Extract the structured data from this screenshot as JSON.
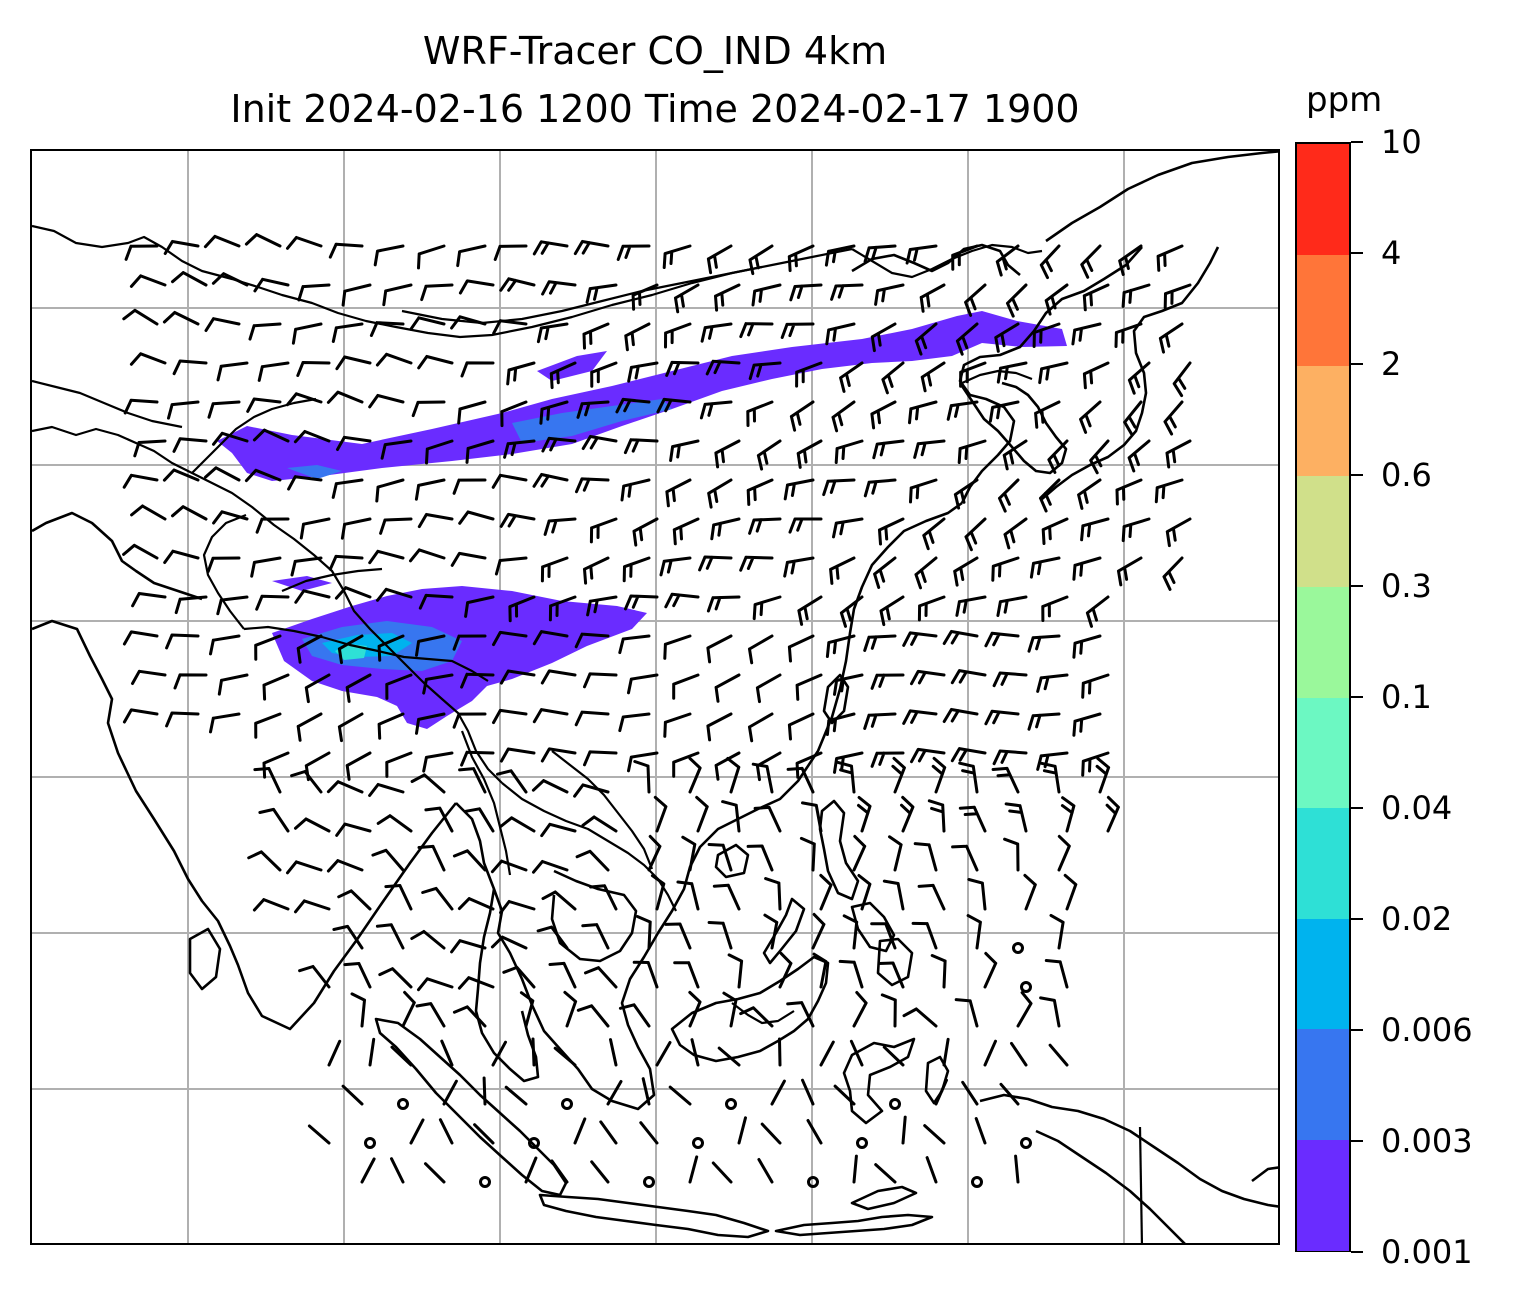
{
  "title": {
    "line1": "WRF-Tracer CO_IND 4km",
    "line2": "Init 2024-02-16 1200 Time 2024-02-17 1900"
  },
  "colorbar": {
    "unit": "ppm",
    "tick_labels": [
      "0.001",
      "0.003",
      "0.006",
      "0.02",
      "0.04",
      "0.1",
      "0.3",
      "0.6",
      "2",
      "4",
      "10"
    ],
    "colors": [
      "#6a2cff",
      "#3776f0",
      "#00b3ee",
      "#2ee0d6",
      "#6cf8c2",
      "#9af89b",
      "#d0e08a",
      "#fdb062",
      "#ff7539",
      "#ff2a1a"
    ]
  },
  "map": {
    "gridlines": true,
    "gridline_color": "#b0b0b0",
    "coastline_color": "#000000",
    "plume_colors": {
      "level1": "#6a2cff",
      "level2": "#3776f0",
      "level3": "#00b3ee",
      "level4": "#2ee0d6"
    },
    "wind_barbs": true
  }
}
